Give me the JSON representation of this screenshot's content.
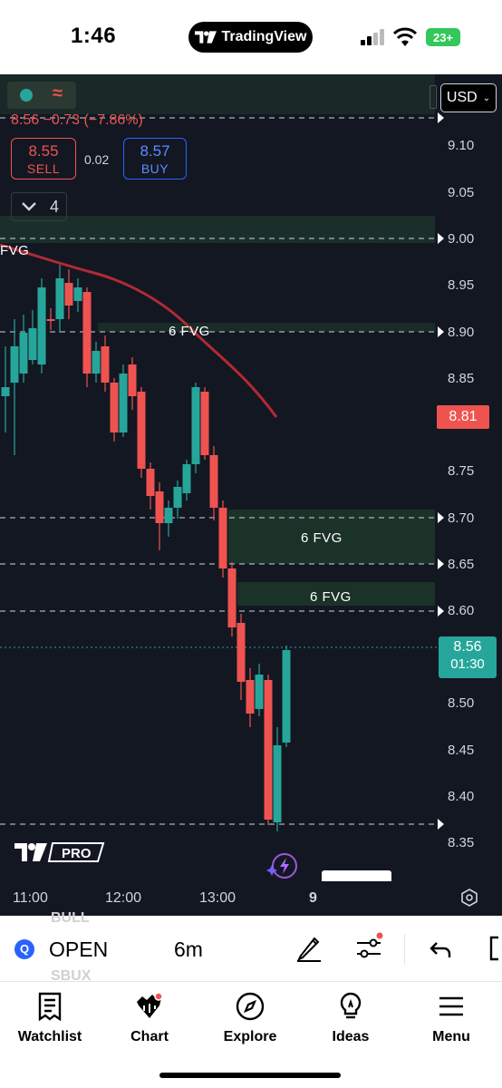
{
  "status_bar": {
    "time": "1:46",
    "app_badge": "TradingView",
    "battery": "23+"
  },
  "chart": {
    "price_change": "8.56 −0.73 (−7.86%)",
    "sell": {
      "price": "8.55",
      "label": "SELL"
    },
    "buy": {
      "price": "8.57",
      "label": "BUY"
    },
    "spread": "0.02",
    "collapse_count": "4",
    "currency": "USD",
    "price_axis": [
      "9.10",
      "9.05",
      "9.00",
      "8.95",
      "8.90",
      "8.85",
      "8.75",
      "8.70",
      "8.65",
      "8.60",
      "8.50",
      "8.45",
      "8.40",
      "8.35"
    ],
    "moving_average_tag": "8.81",
    "current_price": "8.56",
    "countdown": "01:30",
    "time_axis": [
      "11:00",
      "12:00",
      "13:00",
      "9"
    ],
    "fvg_labels": [
      "FVG",
      "6 FVG",
      "6 FVG",
      "6 FVG"
    ],
    "pro_label": "PRO",
    "colors": {
      "up": "#26a69a",
      "down": "#ef5350",
      "background": "#131722",
      "fvg_zone": "#1e3a2c",
      "ma_line": "#b22a35"
    }
  },
  "symbol_bar": {
    "ghost_top": "BULL",
    "ghost_bottom": "SBUX",
    "symbol_icon": "Q",
    "symbol": "OPEN",
    "interval": "6m"
  },
  "nav": {
    "items": [
      {
        "label": "Watchlist",
        "icon": "watchlist-icon"
      },
      {
        "label": "Chart",
        "icon": "chart-icon"
      },
      {
        "label": "Explore",
        "icon": "compass-icon"
      },
      {
        "label": "Ideas",
        "icon": "lightbulb-icon"
      },
      {
        "label": "Menu",
        "icon": "hamburger-icon"
      }
    ]
  }
}
